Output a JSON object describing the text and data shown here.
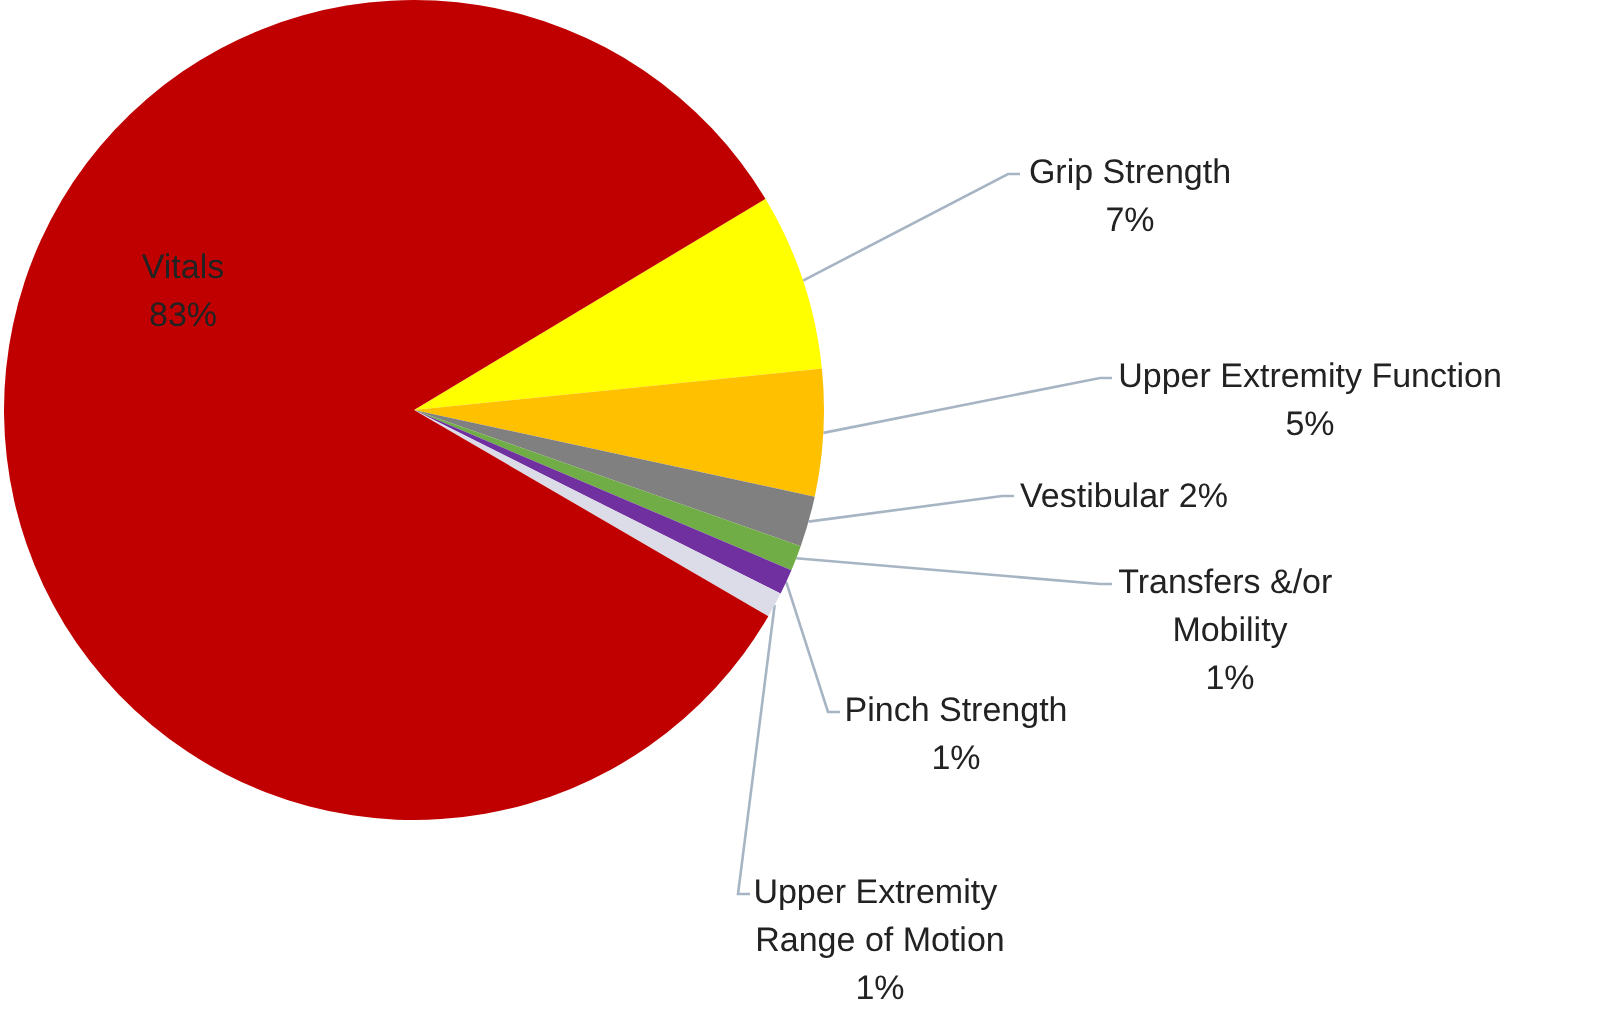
{
  "chart_data": {
    "type": "pie",
    "categories": [
      "Grip Strength",
      "Upper Extremity Function",
      "Vestibular",
      "Transfers &/or Mobility",
      "Pinch Strength",
      "Upper Extremity Range of Motion",
      "Vitals"
    ],
    "values": [
      7,
      5,
      2,
      1,
      1,
      1,
      83
    ],
    "colors": [
      "#ffff00",
      "#ffc000",
      "#808080",
      "#70ad47",
      "#7030a0",
      "#dcdce8",
      "#c00000"
    ],
    "value_labels": [
      "7%",
      "5%",
      "2%",
      "1%",
      "1%",
      "1%",
      "83%"
    ]
  }
}
